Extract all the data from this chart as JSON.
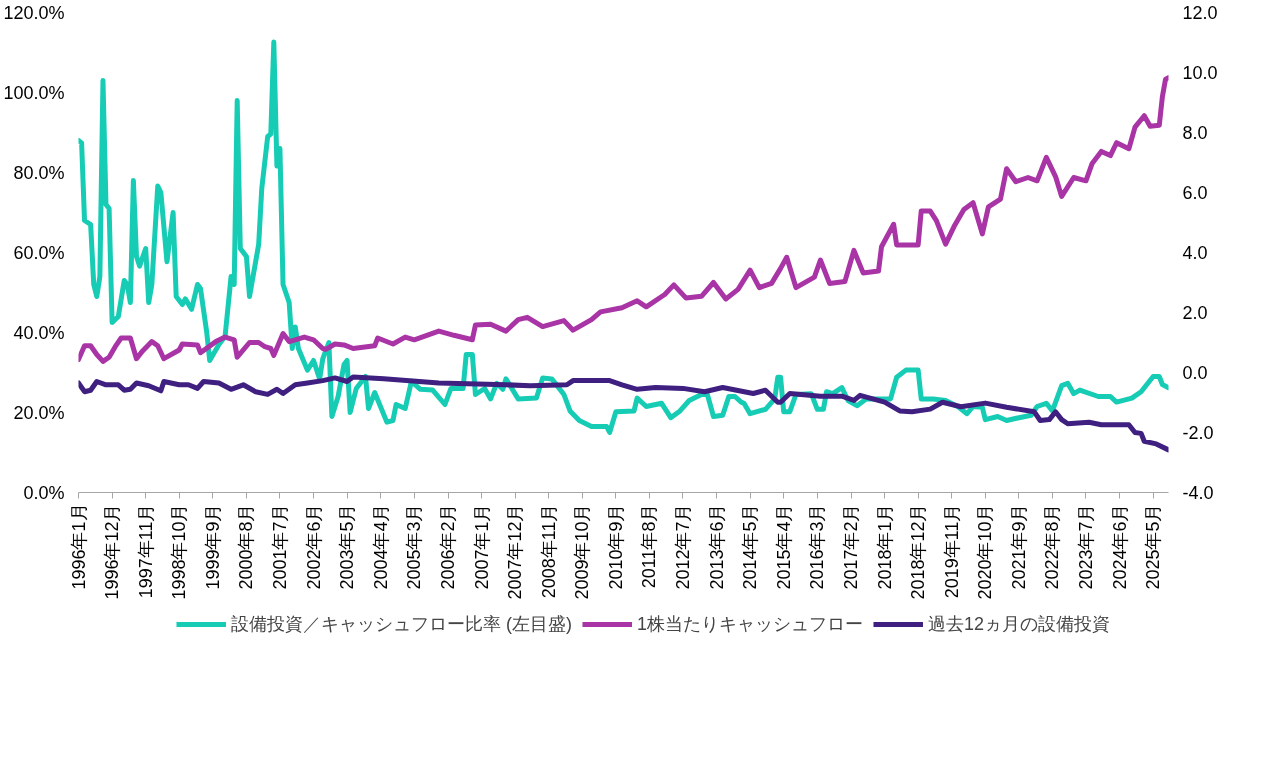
{
  "chart_data": {
    "type": "line",
    "legend": "bottom",
    "xlim": [
      "1996-01",
      "2025-10"
    ],
    "ylim": [
      0,
      120
    ],
    "yticks": [
      {
        "value": 0,
        "label": "0.0%"
      },
      {
        "value": 20,
        "label": "20.0%"
      },
      {
        "value": 40,
        "label": "40.0%"
      },
      {
        "value": 60,
        "label": "60.0%"
      },
      {
        "value": 80,
        "label": "80.0%"
      },
      {
        "value": 100,
        "label": "100.0%"
      },
      {
        "value": 120,
        "label": "120.0%"
      }
    ],
    "y2lim": [
      -4,
      12
    ],
    "y2ticks": [
      {
        "value": -4,
        "label": "-4.0"
      },
      {
        "value": -2,
        "label": "-2.0"
      },
      {
        "value": 0,
        "label": "0.0"
      },
      {
        "value": 2,
        "label": "2.0"
      },
      {
        "value": 4,
        "label": "4.0"
      },
      {
        "value": 6,
        "label": "6.0"
      },
      {
        "value": 8,
        "label": "8.0"
      },
      {
        "value": 10,
        "label": "10.0"
      },
      {
        "value": 12,
        "label": "12.0"
      }
    ],
    "xticks": [
      {
        "value": "1996-01",
        "label": "1996年1月"
      },
      {
        "value": "1996-12",
        "label": "1996年12月"
      },
      {
        "value": "1997-11",
        "label": "1997年11月"
      },
      {
        "value": "1998-10",
        "label": "1998年10月"
      },
      {
        "value": "1999-09",
        "label": "1999年9月"
      },
      {
        "value": "2000-08",
        "label": "2000年8月"
      },
      {
        "value": "2001-07",
        "label": "2001年7月"
      },
      {
        "value": "2002-06",
        "label": "2002年6月"
      },
      {
        "value": "2003-05",
        "label": "2003年5月"
      },
      {
        "value": "2004-04",
        "label": "2004年4月"
      },
      {
        "value": "2005-03",
        "label": "2005年3月"
      },
      {
        "value": "2006-02",
        "label": "2006年2月"
      },
      {
        "value": "2007-01",
        "label": "2007年1月"
      },
      {
        "value": "2007-12",
        "label": "2007年12月"
      },
      {
        "value": "2008-11",
        "label": "2008年11月"
      },
      {
        "value": "2009-10",
        "label": "2009年10月"
      },
      {
        "value": "2010-09",
        "label": "2010年9月"
      },
      {
        "value": "2011-08",
        "label": "2011年8月"
      },
      {
        "value": "2012-07",
        "label": "2012年7月"
      },
      {
        "value": "2013-06",
        "label": "2013年6月"
      },
      {
        "value": "2014-05",
        "label": "2014年5月"
      },
      {
        "value": "2015-04",
        "label": "2015年4月"
      },
      {
        "value": "2016-03",
        "label": "2016年3月"
      },
      {
        "value": "2017-02",
        "label": "2017年2月"
      },
      {
        "value": "2018-01",
        "label": "2018年1月"
      },
      {
        "value": "2018-12",
        "label": "2018年12月"
      },
      {
        "value": "2019-11",
        "label": "2019年11月"
      },
      {
        "value": "2020-10",
        "label": "2020年10月"
      },
      {
        "value": "2021-09",
        "label": "2021年9月"
      },
      {
        "value": "2022-08",
        "label": "2022年8月"
      },
      {
        "value": "2023-07",
        "label": "2023年7月"
      },
      {
        "value": "2024-06",
        "label": "2024年6月"
      },
      {
        "value": "2025-05",
        "label": "2025年5月"
      }
    ],
    "series": [
      {
        "name": "設備投資／キャッシュフロー比率 (左目盛)",
        "color": "#17ccb4",
        "x": [
          "1996-01",
          "1996-02",
          "1996-03",
          "1996-05",
          "1996-06",
          "1996-07",
          "1996-08",
          "1996-09",
          "1996-10",
          "1996-11",
          "1996-12",
          "1997-02",
          "1997-04",
          "1997-05",
          "1997-06",
          "1997-07",
          "1997-08",
          "1997-09",
          "1997-11",
          "1997-12",
          "1998-01",
          "1998-03",
          "1998-04",
          "1998-06",
          "1998-08",
          "1998-09",
          "1998-11",
          "1998-12",
          "1999-02",
          "1999-04",
          "1999-05",
          "1999-07",
          "1999-08",
          "1999-11",
          "2000-01",
          "2000-03",
          "2000-04",
          "2000-05",
          "2000-06",
          "2000-08",
          "2000-09",
          "2000-12",
          "2001-01",
          "2001-03",
          "2001-04",
          "2001-05",
          "2001-06",
          "2001-07",
          "2001-08",
          "2001-10",
          "2001-11",
          "2001-12",
          "2002-01",
          "2002-04",
          "2002-06",
          "2002-08",
          "2002-09",
          "2002-11",
          "2002-12",
          "2003-02",
          "2003-04",
          "2003-05",
          "2003-06",
          "2003-08",
          "2003-11",
          "2003-12",
          "2004-02",
          "2004-06",
          "2004-08",
          "2004-09",
          "2004-12",
          "2005-02",
          "2005-05",
          "2005-09",
          "2006-01",
          "2006-03",
          "2006-07",
          "2006-08",
          "2006-10",
          "2006-11",
          "2007-02",
          "2007-04",
          "2007-06",
          "2007-08",
          "2007-09",
          "2008-01",
          "2008-07",
          "2008-09",
          "2008-12",
          "2009-04",
          "2009-06",
          "2009-09",
          "2010-01",
          "2010-06",
          "2010-07",
          "2010-09",
          "2011-03",
          "2011-04",
          "2011-07",
          "2011-12",
          "2012-03",
          "2012-06",
          "2012-09",
          "2013-01",
          "2013-03",
          "2013-05",
          "2013-08",
          "2013-10",
          "2013-12",
          "2014-02",
          "2014-03",
          "2014-05",
          "2014-10",
          "2015-01",
          "2015-02",
          "2015-03",
          "2015-04",
          "2015-06",
          "2015-08",
          "2016-01",
          "2016-03",
          "2016-05",
          "2016-06",
          "2016-08",
          "2016-11",
          "2017-01",
          "2017-04",
          "2017-07",
          "2017-12",
          "2018-03",
          "2018-05",
          "2018-08",
          "2018-12",
          "2019-01",
          "2019-05",
          "2019-09",
          "2020-01",
          "2020-04",
          "2020-06",
          "2020-09",
          "2020-10",
          "2021-02",
          "2021-05",
          "2021-09",
          "2022-01",
          "2022-03",
          "2022-06",
          "2022-08",
          "2022-11",
          "2023-01",
          "2023-03",
          "2023-05",
          "2023-11",
          "2024-03",
          "2024-05",
          "2024-10",
          "2025-01",
          "2025-05",
          "2025-07",
          "2025-08",
          "2025-10"
        ],
        "values": [
          88,
          87.4,
          68,
          67,
          52,
          49,
          54,
          103,
          72,
          71,
          42.5,
          44,
          53,
          52,
          47.5,
          78,
          59,
          56.6,
          61,
          47.5,
          52,
          76.6,
          75,
          57.7,
          70,
          49,
          47,
          48.4,
          45.8,
          52,
          51,
          40.3,
          33,
          37,
          39,
          54,
          52,
          98,
          61,
          59,
          49,
          62,
          76,
          89,
          89.6,
          112.6,
          81.6,
          86,
          52,
          47.5,
          36,
          41.4,
          36,
          30.6,
          33,
          28.4,
          33.4,
          37.5,
          19,
          24,
          32,
          33,
          20,
          26,
          29,
          21,
          25,
          17.6,
          18,
          22,
          21,
          27.8,
          25.8,
          25.6,
          22,
          26,
          26,
          34.5,
          34.5,
          24.5,
          26,
          23.4,
          27.3,
          25.8,
          28.4,
          23.4,
          23.6,
          28.6,
          28.4,
          24.5,
          20.4,
          18,
          16.5,
          16.5,
          15,
          20.2,
          20.4,
          23.6,
          21.5,
          22.3,
          18.7,
          20.4,
          23,
          24.5,
          24.5,
          19,
          19.3,
          24,
          24,
          22.6,
          22.3,
          19.7,
          20.8,
          23.4,
          28.8,
          28.8,
          20.2,
          20.2,
          24.5,
          24.7,
          20.8,
          20.8,
          25.2,
          24.7,
          26.2,
          23,
          21.7,
          23.4,
          23.4,
          23.4,
          28.8,
          30.6,
          30.6,
          23.4,
          23.4,
          23,
          21.5,
          19.7,
          21.5,
          21.3,
          18.2,
          19,
          18,
          18.7,
          19.3,
          21.5,
          22.3,
          20.4,
          26.7,
          27.3,
          24.7,
          25.6,
          24,
          24,
          22.6,
          23.6,
          25.2,
          29,
          29,
          27,
          26.2
        ]
      },
      {
        "name": "1株当たりキャッシュフロー",
        "color": "#a934a5",
        "axis": "y2",
        "x": [
          "1996-01",
          "1996-03",
          "1996-05",
          "1996-07",
          "1996-09",
          "1996-11",
          "1997-01",
          "1997-03",
          "1997-06",
          "1997-08",
          "1997-10",
          "1998-01",
          "1998-03",
          "1998-05",
          "1998-10",
          "1998-11",
          "1999-04",
          "1999-05",
          "1999-10",
          "2000-01",
          "2000-04",
          "2000-05",
          "2000-09",
          "2000-12",
          "2001-02",
          "2001-04",
          "2001-05",
          "2001-08",
          "2001-10",
          "2002-03",
          "2002-06",
          "2002-09",
          "2002-10",
          "2003-01",
          "2003-04",
          "2003-07",
          "2004-02",
          "2004-03",
          "2004-08",
          "2004-12",
          "2005-03",
          "2005-11",
          "2006-04",
          "2006-10",
          "2006-11",
          "2007-04",
          "2007-09",
          "2008-01",
          "2008-04",
          "2008-09",
          "2009-04",
          "2009-07",
          "2010-01",
          "2010-04",
          "2010-11",
          "2011-04",
          "2011-07",
          "2012-01",
          "2012-04",
          "2012-08",
          "2013-01",
          "2013-05",
          "2013-09",
          "2014-01",
          "2014-05",
          "2014-08",
          "2014-12",
          "2015-03",
          "2015-05",
          "2015-08",
          "2016-02",
          "2016-04",
          "2016-07",
          "2016-12",
          "2017-03",
          "2017-06",
          "2017-11",
          "2017-12",
          "2018-04",
          "2018-05",
          "2018-12",
          "2019-01",
          "2019-04",
          "2019-06",
          "2019-09",
          "2019-12",
          "2020-03",
          "2020-06",
          "2020-09",
          "2020-11",
          "2021-03",
          "2021-05",
          "2021-08",
          "2021-12",
          "2022-03",
          "2022-06",
          "2022-09",
          "2022-11",
          "2023-03",
          "2023-07",
          "2023-09",
          "2023-12",
          "2024-03",
          "2024-05",
          "2024-09",
          "2024-11",
          "2025-02",
          "2025-04",
          "2025-07",
          "2025-08",
          "2025-09",
          "2025-10"
        ],
        "values": [
          0.43,
          0.89,
          0.89,
          0.6,
          0.37,
          0.51,
          0.86,
          1.15,
          1.15,
          0.46,
          0.72,
          1.03,
          0.89,
          0.46,
          0.75,
          0.95,
          0.92,
          0.66,
          1.03,
          1.18,
          1.09,
          0.51,
          1.0,
          1.0,
          0.86,
          0.8,
          0.57,
          1.3,
          1.03,
          1.18,
          1.09,
          0.8,
          0.77,
          0.95,
          0.92,
          0.8,
          0.89,
          1.15,
          0.95,
          1.18,
          1.09,
          1.38,
          1.24,
          1.09,
          1.58,
          1.61,
          1.38,
          1.76,
          1.84,
          1.53,
          1.73,
          1.41,
          1.76,
          2.02,
          2.16,
          2.39,
          2.19,
          2.6,
          2.92,
          2.48,
          2.54,
          3.0,
          2.45,
          2.77,
          3.41,
          2.83,
          2.97,
          3.47,
          3.84,
          2.83,
          3.18,
          3.75,
          2.97,
          3.03,
          4.07,
          3.32,
          3.38,
          4.19,
          4.94,
          4.25,
          4.25,
          5.38,
          5.38,
          5.06,
          4.28,
          4.91,
          5.43,
          5.66,
          4.62,
          5.52,
          5.78,
          6.79,
          6.36,
          6.5,
          6.39,
          7.17,
          6.53,
          5.87,
          6.5,
          6.39,
          6.97,
          7.37,
          7.23,
          7.66,
          7.46,
          8.18,
          8.56,
          8.21,
          8.24,
          9.19,
          9.77,
          9.83
        ]
      },
      {
        "name": "過去12ヵ月の設備投資",
        "color": "#3f1f80",
        "axis": "y2",
        "x": [
          "1996-01",
          "1996-03",
          "1996-05",
          "1996-07",
          "1996-10",
          "1997-02",
          "1997-04",
          "1997-06",
          "1997-08",
          "1997-12",
          "1998-04",
          "1998-05",
          "1998-10",
          "1999-01",
          "1999-04",
          "1999-06",
          "1999-11",
          "2000-03",
          "2000-07",
          "2000-11",
          "2001-03",
          "2001-06",
          "2001-08",
          "2001-12",
          "2002-04",
          "2002-09",
          "2003-01",
          "2003-05",
          "2003-07",
          "2004-05",
          "2005-11",
          "2007-09",
          "2008-05",
          "2009-05",
          "2009-07",
          "2010-07",
          "2010-11",
          "2011-04",
          "2011-10",
          "2012-07",
          "2013-02",
          "2013-08",
          "2014-06",
          "2014-10",
          "2015-02",
          "2015-03",
          "2015-06",
          "2016-04",
          "2016-11",
          "2017-03",
          "2017-05",
          "2018-01",
          "2018-06",
          "2018-10",
          "2019-04",
          "2019-08",
          "2020-02",
          "2020-10",
          "2021-05",
          "2022-02",
          "2022-04",
          "2022-07",
          "2022-09",
          "2022-11",
          "2023-01",
          "2023-08",
          "2023-12",
          "2024-09",
          "2024-11",
          "2025-01",
          "2025-02",
          "2025-06",
          "2025-10"
        ],
        "values": [
          -0.35,
          -0.64,
          -0.59,
          -0.3,
          -0.41,
          -0.41,
          -0.59,
          -0.56,
          -0.35,
          -0.44,
          -0.61,
          -0.3,
          -0.41,
          -0.41,
          -0.53,
          -0.3,
          -0.35,
          -0.56,
          -0.41,
          -0.64,
          -0.73,
          -0.56,
          -0.7,
          -0.41,
          -0.35,
          -0.27,
          -0.18,
          -0.3,
          -0.15,
          -0.21,
          -0.35,
          -0.41,
          -0.44,
          -0.41,
          -0.27,
          -0.27,
          -0.41,
          -0.56,
          -0.5,
          -0.53,
          -0.64,
          -0.5,
          -0.7,
          -0.59,
          -0.99,
          -0.99,
          -0.7,
          -0.79,
          -0.79,
          -0.93,
          -0.76,
          -0.99,
          -1.28,
          -1.31,
          -1.22,
          -0.99,
          -1.14,
          -1.02,
          -1.16,
          -1.31,
          -1.6,
          -1.57,
          -1.31,
          -1.57,
          -1.71,
          -1.66,
          -1.74,
          -1.74,
          -2.0,
          -2.03,
          -2.29,
          -2.38,
          -2.58
        ]
      }
    ]
  }
}
